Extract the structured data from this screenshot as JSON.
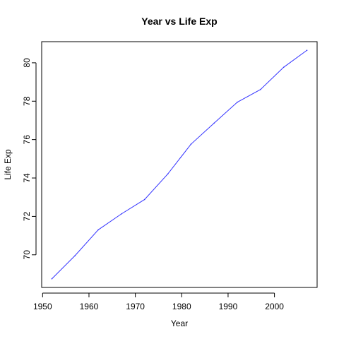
{
  "chart_data": {
    "type": "line",
    "title": "Year vs Life Exp",
    "xlabel": "Year",
    "ylabel": "Life Exp",
    "x": [
      1952,
      1957,
      1962,
      1967,
      1972,
      1977,
      1982,
      1987,
      1992,
      1997,
      2002,
      2007
    ],
    "series": [
      {
        "color": "#3333ff",
        "values": [
          68.75,
          69.96,
          71.3,
          72.13,
          72.88,
          74.21,
          75.76,
          76.86,
          77.95,
          78.61,
          79.77,
          80.65
        ]
      }
    ],
    "xlim": [
      1949.8,
      2009.2
    ],
    "ylim": [
      68.3,
      81.1
    ],
    "xticks": [
      1950,
      1960,
      1970,
      1980,
      1990,
      2000
    ],
    "yticks": [
      70,
      72,
      74,
      76,
      78,
      80
    ],
    "xtick_labels": [
      "1950",
      "1960",
      "1970",
      "1980",
      "1990",
      "2000"
    ],
    "ytick_labels": [
      "70",
      "72",
      "74",
      "76",
      "78",
      "80"
    ],
    "grid": false,
    "legend": "none"
  }
}
